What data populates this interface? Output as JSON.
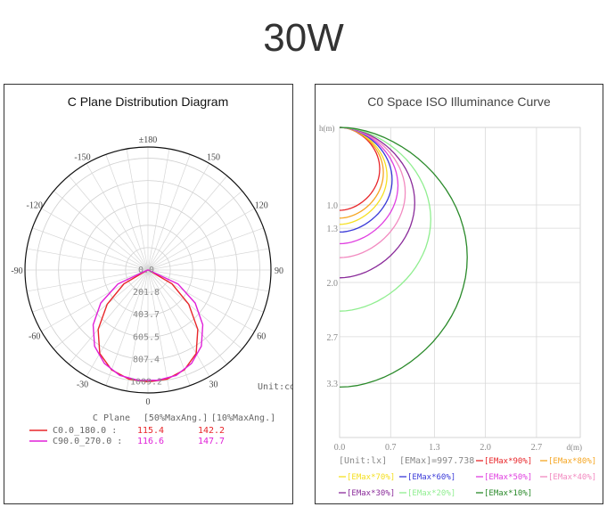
{
  "page_title": "30W",
  "chart_data": [
    {
      "type": "polar",
      "title": "C Plane Distribution Diagram",
      "unit": "Unit:cd",
      "angle_labels": [
        {
          "angle": 180,
          "text": "±180"
        },
        {
          "angle": -150,
          "text": "-150"
        },
        {
          "angle": 150,
          "text": "150"
        },
        {
          "angle": -120,
          "text": "-120"
        },
        {
          "angle": 120,
          "text": "120"
        },
        {
          "angle": -90,
          "text": "-90"
        },
        {
          "angle": 90,
          "text": "90"
        },
        {
          "angle": -60,
          "text": "-60"
        },
        {
          "angle": 60,
          "text": "60"
        },
        {
          "angle": -30,
          "text": "-30"
        },
        {
          "angle": 30,
          "text": "30"
        },
        {
          "angle": 0,
          "text": "0"
        }
      ],
      "radial_ticks": [
        "0.0",
        "201.8",
        "403.7",
        "605.5",
        "807.4",
        "1009.2"
      ],
      "radial_max": 1009.2,
      "legend_header": [
        "C Plane",
        "[50%MaxAng.]",
        "[10%MaxAng.]"
      ],
      "series": [
        {
          "name": "C0.0_180.0",
          "color": "#e8262a",
          "max50": "115.4",
          "max10": "142.2",
          "angles": [
            -70,
            -60,
            -50,
            -40,
            -30,
            -20,
            -10,
            0,
            10,
            20,
            30,
            40,
            50,
            60,
            70
          ],
          "values": [
            8,
            250,
            480,
            700,
            870,
            960,
            1000,
            1009.2,
            1000,
            960,
            870,
            700,
            480,
            250,
            8
          ]
        },
        {
          "name": "C90.0_270.0",
          "color": "#e020d8",
          "max50": "116.6",
          "max10": "147.7",
          "angles": [
            -75,
            -65,
            -55,
            -45,
            -35,
            -25,
            -15,
            -5,
            0,
            5,
            15,
            25,
            35,
            45,
            55,
            65,
            75
          ],
          "values": [
            8,
            300,
            520,
            700,
            840,
            930,
            985,
            1000,
            995,
            1000,
            985,
            930,
            840,
            700,
            520,
            300,
            8
          ]
        }
      ]
    },
    {
      "type": "line",
      "title": "C0 Space ISO Illuminance Curve",
      "ylabel": "h(m)",
      "xlabel": "d(m)",
      "x_ticks": [
        "0.0",
        "0.7",
        "1.3",
        "2.0",
        "2.7"
      ],
      "y_ticks": [
        "1.0",
        "1.3",
        "2.0",
        "2.7",
        "3.3"
      ],
      "xlim": [
        0,
        3.3
      ],
      "ylim": [
        0,
        4.0
      ],
      "unit": "[Unit:lx]",
      "emax": "[EMax]=997.738",
      "series": [
        {
          "name": "[EMax*90%]",
          "color": "#e8262a",
          "dmax": 0.55,
          "hmax": 1.07
        },
        {
          "name": "[EMax*80%]",
          "color": "#f5a623",
          "dmax": 0.6,
          "hmax": 1.17
        },
        {
          "name": "[EMax*70%]",
          "color": "#f5e023",
          "dmax": 0.65,
          "hmax": 1.25
        },
        {
          "name": "[EMax*60%]",
          "color": "#3a3ad8",
          "dmax": 0.72,
          "hmax": 1.35
        },
        {
          "name": "[EMax*50%]",
          "color": "#e040e0",
          "dmax": 0.8,
          "hmax": 1.5
        },
        {
          "name": "[EMax*40%]",
          "color": "#f28ac0",
          "dmax": 0.9,
          "hmax": 1.68
        },
        {
          "name": "[EMax*30%]",
          "color": "#8a2b9a",
          "dmax": 1.03,
          "hmax": 1.94
        },
        {
          "name": "[EMax*20%]",
          "color": "#90ee90",
          "dmax": 1.25,
          "hmax": 2.37
        },
        {
          "name": "[EMax*10%]",
          "color": "#2a8a2a",
          "dmax": 1.75,
          "hmax": 3.35
        }
      ]
    }
  ]
}
